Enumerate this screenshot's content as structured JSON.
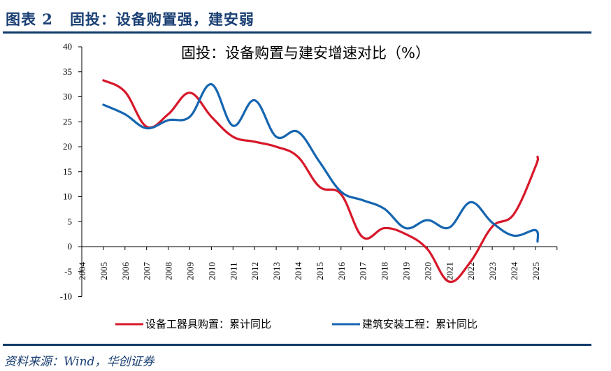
{
  "figure": {
    "label": "图表 2",
    "title": "固投：设备购置强，建安弱",
    "source": "资料来源：Wind，华创证券"
  },
  "colors": {
    "header_blue": "#1a3f73",
    "rule_blue": "#0f3a6b"
  },
  "chart_data": {
    "type": "line",
    "title": "固投：设备购置与建安增速对比（%）",
    "xlabel": "",
    "ylabel": "",
    "x_ticks": [
      "2004",
      "2005",
      "2006",
      "2007",
      "2008",
      "2009",
      "2010",
      "2011",
      "2012",
      "2013",
      "2014",
      "2015",
      "2016",
      "2017",
      "2018",
      "2019",
      "2020",
      "2021",
      "2022",
      "2023",
      "2024",
      "2025"
    ],
    "y_ticks": [
      "40",
      "35",
      "30",
      "25",
      "20",
      "15",
      "10",
      "5",
      "0",
      "-5",
      "-10"
    ],
    "ylim": [
      -10,
      40
    ],
    "xlim": [
      2004,
      2026
    ],
    "grid": false,
    "legend_position": "bottom",
    "x": [
      2005,
      2006,
      2007,
      2008,
      2009,
      2010,
      2011,
      2012,
      2013,
      2014,
      2015,
      2016,
      2017,
      2018,
      2019,
      2020,
      2021,
      2022,
      2023,
      2024,
      2025,
      2025.1
    ],
    "series": [
      {
        "name": "设备工器具购置：累计同比",
        "color": "#d7182a",
        "values": [
          33.3,
          31.0,
          24.0,
          26.5,
          30.8,
          26.0,
          22.0,
          21.0,
          20.0,
          18.0,
          12.0,
          10.5,
          1.9,
          3.7,
          2.5,
          -0.5,
          -7.0,
          -3.0,
          4.0,
          6.5,
          16.0,
          18.0
        ]
      },
      {
        "name": "建筑安装工程：累计同比",
        "color": "#1565b0",
        "values": [
          28.4,
          26.5,
          23.7,
          25.3,
          26.0,
          32.5,
          24.2,
          29.3,
          22.0,
          23.0,
          17.0,
          11.0,
          9.3,
          7.6,
          3.7,
          5.3,
          3.8,
          8.9,
          4.8,
          2.2,
          3.3,
          1.0
        ]
      }
    ]
  }
}
